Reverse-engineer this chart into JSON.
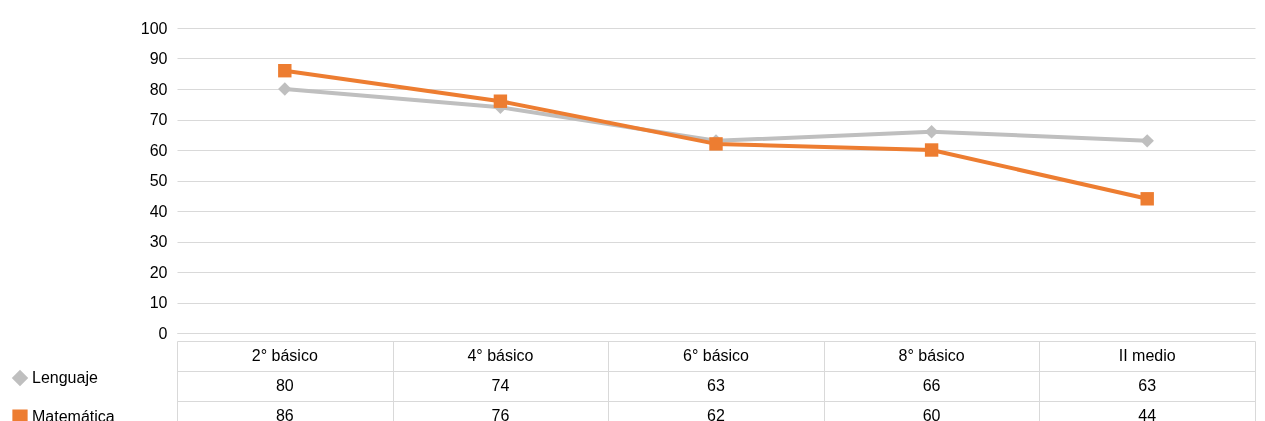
{
  "chart_data": {
    "type": "line",
    "categories": [
      "2° básico",
      "4° básico",
      "6° básico",
      "8° básico",
      "II medio"
    ],
    "series": [
      {
        "name": "Lenguaje",
        "color": "#bfbfbf",
        "marker": "diamond",
        "values": [
          80,
          74,
          63,
          66,
          63
        ]
      },
      {
        "name": "Matemática",
        "color": "#ed7d31",
        "marker": "square",
        "values": [
          86,
          76,
          62,
          60,
          44
        ]
      }
    ],
    "ylim": [
      0,
      100
    ],
    "yticks": [
      0,
      10,
      20,
      30,
      40,
      50,
      60,
      70,
      80,
      90,
      100
    ],
    "grid": "y",
    "data_labels": true,
    "legend": "bottom left",
    "line_style": "solid"
  }
}
